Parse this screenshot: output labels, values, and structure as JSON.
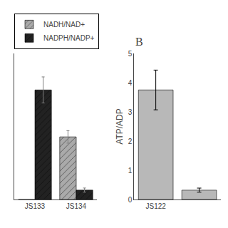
{
  "chart_data": [
    {
      "type": "bar",
      "categories": [
        "JS133",
        "JS134"
      ],
      "series": [
        {
          "name": "NADH/NAD+",
          "color": "#aaaaaa",
          "values": [
            0.0,
            1.2
          ],
          "errors": [
            0.0,
            0.12
          ]
        },
        {
          "name": "NADPH/NADP+",
          "color": "#222222",
          "values": [
            2.1,
            0.18
          ],
          "errors": [
            0.25,
            0.04
          ]
        }
      ],
      "ylim": [
        0,
        2.8
      ],
      "yticks": [],
      "legend": "upper left",
      "tick_labels": "x",
      "grid": false
    },
    {
      "type": "bar",
      "title": "B",
      "categories": [
        "JS122",
        null
      ],
      "values": [
        3.75,
        0.32
      ],
      "errors": [
        0.68,
        0.07
      ],
      "color": "#b8b8b8",
      "ylabel": "ATP/ADP",
      "ylim": [
        0,
        5
      ],
      "yticks": [
        0,
        1,
        2,
        3,
        4,
        5
      ],
      "grid": false
    }
  ]
}
